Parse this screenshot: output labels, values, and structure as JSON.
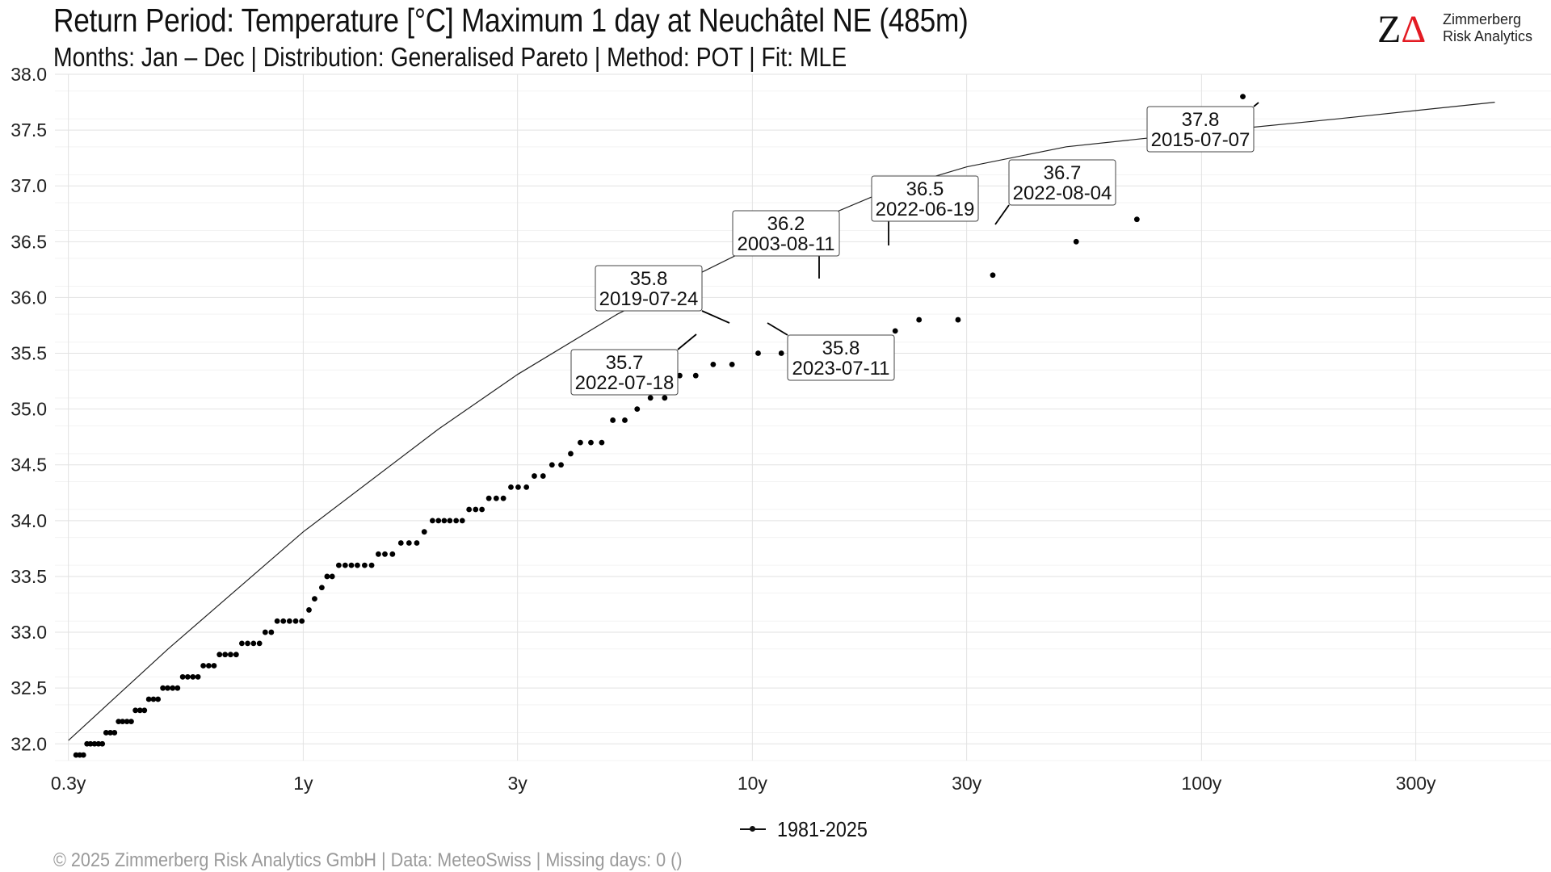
{
  "header": {
    "title": "Return Period: Temperature [°C] Maximum 1 day at Neuchâtel  NE (485m)",
    "subtitle": "Months: Jan – Dec | Distribution: Generalised Pareto | Method: POT | Fit: MLE"
  },
  "logo": {
    "mark_letter": "Z",
    "mark_triangle": "Δ",
    "line1": "Zimmerberg",
    "line2": "Risk Analytics"
  },
  "legend": {
    "label": "1981-2025"
  },
  "footer": {
    "text": "©  2025 Zimmerberg Risk Analytics GmbH | Data: MeteoSwiss | Missing days: 0 ()"
  },
  "chart_data": {
    "type": "scatter",
    "x_scale": "log",
    "xlim": [
      0.28,
      600
    ],
    "ylim": [
      31.85,
      38.0
    ],
    "x_ticks": [
      {
        "value": 0.3,
        "label": "0.3y"
      },
      {
        "value": 1,
        "label": "1y"
      },
      {
        "value": 3,
        "label": "3y"
      },
      {
        "value": 10,
        "label": "10y"
      },
      {
        "value": 30,
        "label": "30y"
      },
      {
        "value": 100,
        "label": "100y"
      },
      {
        "value": 300,
        "label": "300y"
      }
    ],
    "y_ticks": [
      {
        "value": 32.0,
        "label": "32.0"
      },
      {
        "value": 32.5,
        "label": "32.5"
      },
      {
        "value": 33.0,
        "label": "33.0"
      },
      {
        "value": 33.5,
        "label": "33.5"
      },
      {
        "value": 34.0,
        "label": "34.0"
      },
      {
        "value": 34.5,
        "label": "34.5"
      },
      {
        "value": 35.0,
        "label": "35.0"
      },
      {
        "value": 35.5,
        "label": "35.5"
      },
      {
        "value": 36.0,
        "label": "36.0"
      },
      {
        "value": 36.5,
        "label": "36.5"
      },
      {
        "value": 37.0,
        "label": "37.0"
      },
      {
        "value": 37.5,
        "label": "37.5"
      },
      {
        "value": 38.0,
        "label": "38.0"
      }
    ],
    "grid": true,
    "legend_position": "bottom",
    "fit_curve": {
      "x": [
        0.3,
        0.5,
        1,
        2,
        3,
        5,
        10,
        20,
        30,
        50,
        100,
        200,
        450
      ],
      "y": [
        32.03,
        32.85,
        33.9,
        34.82,
        35.31,
        35.85,
        36.45,
        36.96,
        37.17,
        37.35,
        37.48,
        37.6,
        37.75
      ]
    },
    "series": [
      {
        "name": "1981-2025",
        "points": [
          [
            0.312,
            31.9
          ],
          [
            0.318,
            31.9
          ],
          [
            0.324,
            31.9
          ],
          [
            0.33,
            32.0
          ],
          [
            0.336,
            32.0
          ],
          [
            0.343,
            32.0
          ],
          [
            0.35,
            32.0
          ],
          [
            0.357,
            32.0
          ],
          [
            0.364,
            32.1
          ],
          [
            0.372,
            32.1
          ],
          [
            0.38,
            32.1
          ],
          [
            0.388,
            32.2
          ],
          [
            0.396,
            32.2
          ],
          [
            0.405,
            32.2
          ],
          [
            0.414,
            32.2
          ],
          [
            0.423,
            32.3
          ],
          [
            0.433,
            32.3
          ],
          [
            0.443,
            32.3
          ],
          [
            0.453,
            32.4
          ],
          [
            0.464,
            32.4
          ],
          [
            0.475,
            32.4
          ],
          [
            0.487,
            32.5
          ],
          [
            0.499,
            32.5
          ],
          [
            0.512,
            32.5
          ],
          [
            0.525,
            32.5
          ],
          [
            0.539,
            32.6
          ],
          [
            0.553,
            32.6
          ],
          [
            0.568,
            32.6
          ],
          [
            0.583,
            32.6
          ],
          [
            0.599,
            32.7
          ],
          [
            0.616,
            32.7
          ],
          [
            0.633,
            32.7
          ],
          [
            0.651,
            32.8
          ],
          [
            0.67,
            32.8
          ],
          [
            0.689,
            32.8
          ],
          [
            0.709,
            32.8
          ],
          [
            0.73,
            32.9
          ],
          [
            0.752,
            32.9
          ],
          [
            0.775,
            32.9
          ],
          [
            0.799,
            32.9
          ],
          [
            0.823,
            33.0
          ],
          [
            0.849,
            33.0
          ],
          [
            0.875,
            33.1
          ],
          [
            0.903,
            33.1
          ],
          [
            0.932,
            33.1
          ],
          [
            0.962,
            33.1
          ],
          [
            0.993,
            33.1
          ],
          [
            1.03,
            33.2
          ],
          [
            1.06,
            33.3
          ],
          [
            1.1,
            33.4
          ],
          [
            1.13,
            33.5
          ],
          [
            1.16,
            33.5
          ],
          [
            1.2,
            33.6
          ],
          [
            1.24,
            33.6
          ],
          [
            1.28,
            33.6
          ],
          [
            1.32,
            33.6
          ],
          [
            1.37,
            33.6
          ],
          [
            1.42,
            33.6
          ],
          [
            1.47,
            33.7
          ],
          [
            1.52,
            33.7
          ],
          [
            1.58,
            33.7
          ],
          [
            1.65,
            33.8
          ],
          [
            1.72,
            33.8
          ],
          [
            1.79,
            33.8
          ],
          [
            1.86,
            33.9
          ],
          [
            1.94,
            34.0
          ],
          [
            2.0,
            34.0
          ],
          [
            2.06,
            34.0
          ],
          [
            2.12,
            34.0
          ],
          [
            2.19,
            34.0
          ],
          [
            2.26,
            34.0
          ],
          [
            2.34,
            34.1
          ],
          [
            2.42,
            34.1
          ],
          [
            2.5,
            34.1
          ],
          [
            2.59,
            34.2
          ],
          [
            2.69,
            34.2
          ],
          [
            2.79,
            34.2
          ],
          [
            2.9,
            34.3
          ],
          [
            3.01,
            34.3
          ],
          [
            3.14,
            34.3
          ],
          [
            3.27,
            34.4
          ],
          [
            3.42,
            34.4
          ],
          [
            3.58,
            34.5
          ],
          [
            3.75,
            34.5
          ],
          [
            3.94,
            34.6
          ],
          [
            4.14,
            34.7
          ],
          [
            4.37,
            34.7
          ],
          [
            4.62,
            34.7
          ],
          [
            4.89,
            34.9
          ],
          [
            5.2,
            34.9
          ],
          [
            5.54,
            35.0
          ],
          [
            5.93,
            35.1
          ],
          [
            6.38,
            35.1
          ],
          [
            6.89,
            35.3
          ],
          [
            7.48,
            35.3
          ],
          [
            8.18,
            35.4
          ],
          [
            9.01,
            35.4
          ],
          [
            10.3,
            35.5
          ],
          [
            11.6,
            35.5
          ],
          [
            13.3,
            35.6
          ],
          [
            15.0,
            35.6
          ],
          [
            17.0,
            35.6
          ],
          [
            20.8,
            35.7
          ],
          [
            23.5,
            35.8
          ],
          [
            28.7,
            35.8
          ],
          [
            34.3,
            36.2
          ],
          [
            52.6,
            36.5
          ],
          [
            71.8,
            36.7
          ],
          [
            123.6,
            37.8
          ]
        ]
      }
    ],
    "annotations": [
      {
        "value": "37.8",
        "date": "2015-07-07"
      },
      {
        "value": "36.7",
        "date": "2022-08-04"
      },
      {
        "value": "36.5",
        "date": "2022-06-19"
      },
      {
        "value": "36.2",
        "date": "2003-08-11"
      },
      {
        "value": "35.8",
        "date": "2019-07-24"
      },
      {
        "value": "35.8",
        "date": "2023-07-11"
      },
      {
        "value": "35.7",
        "date": "2022-07-18"
      }
    ]
  }
}
